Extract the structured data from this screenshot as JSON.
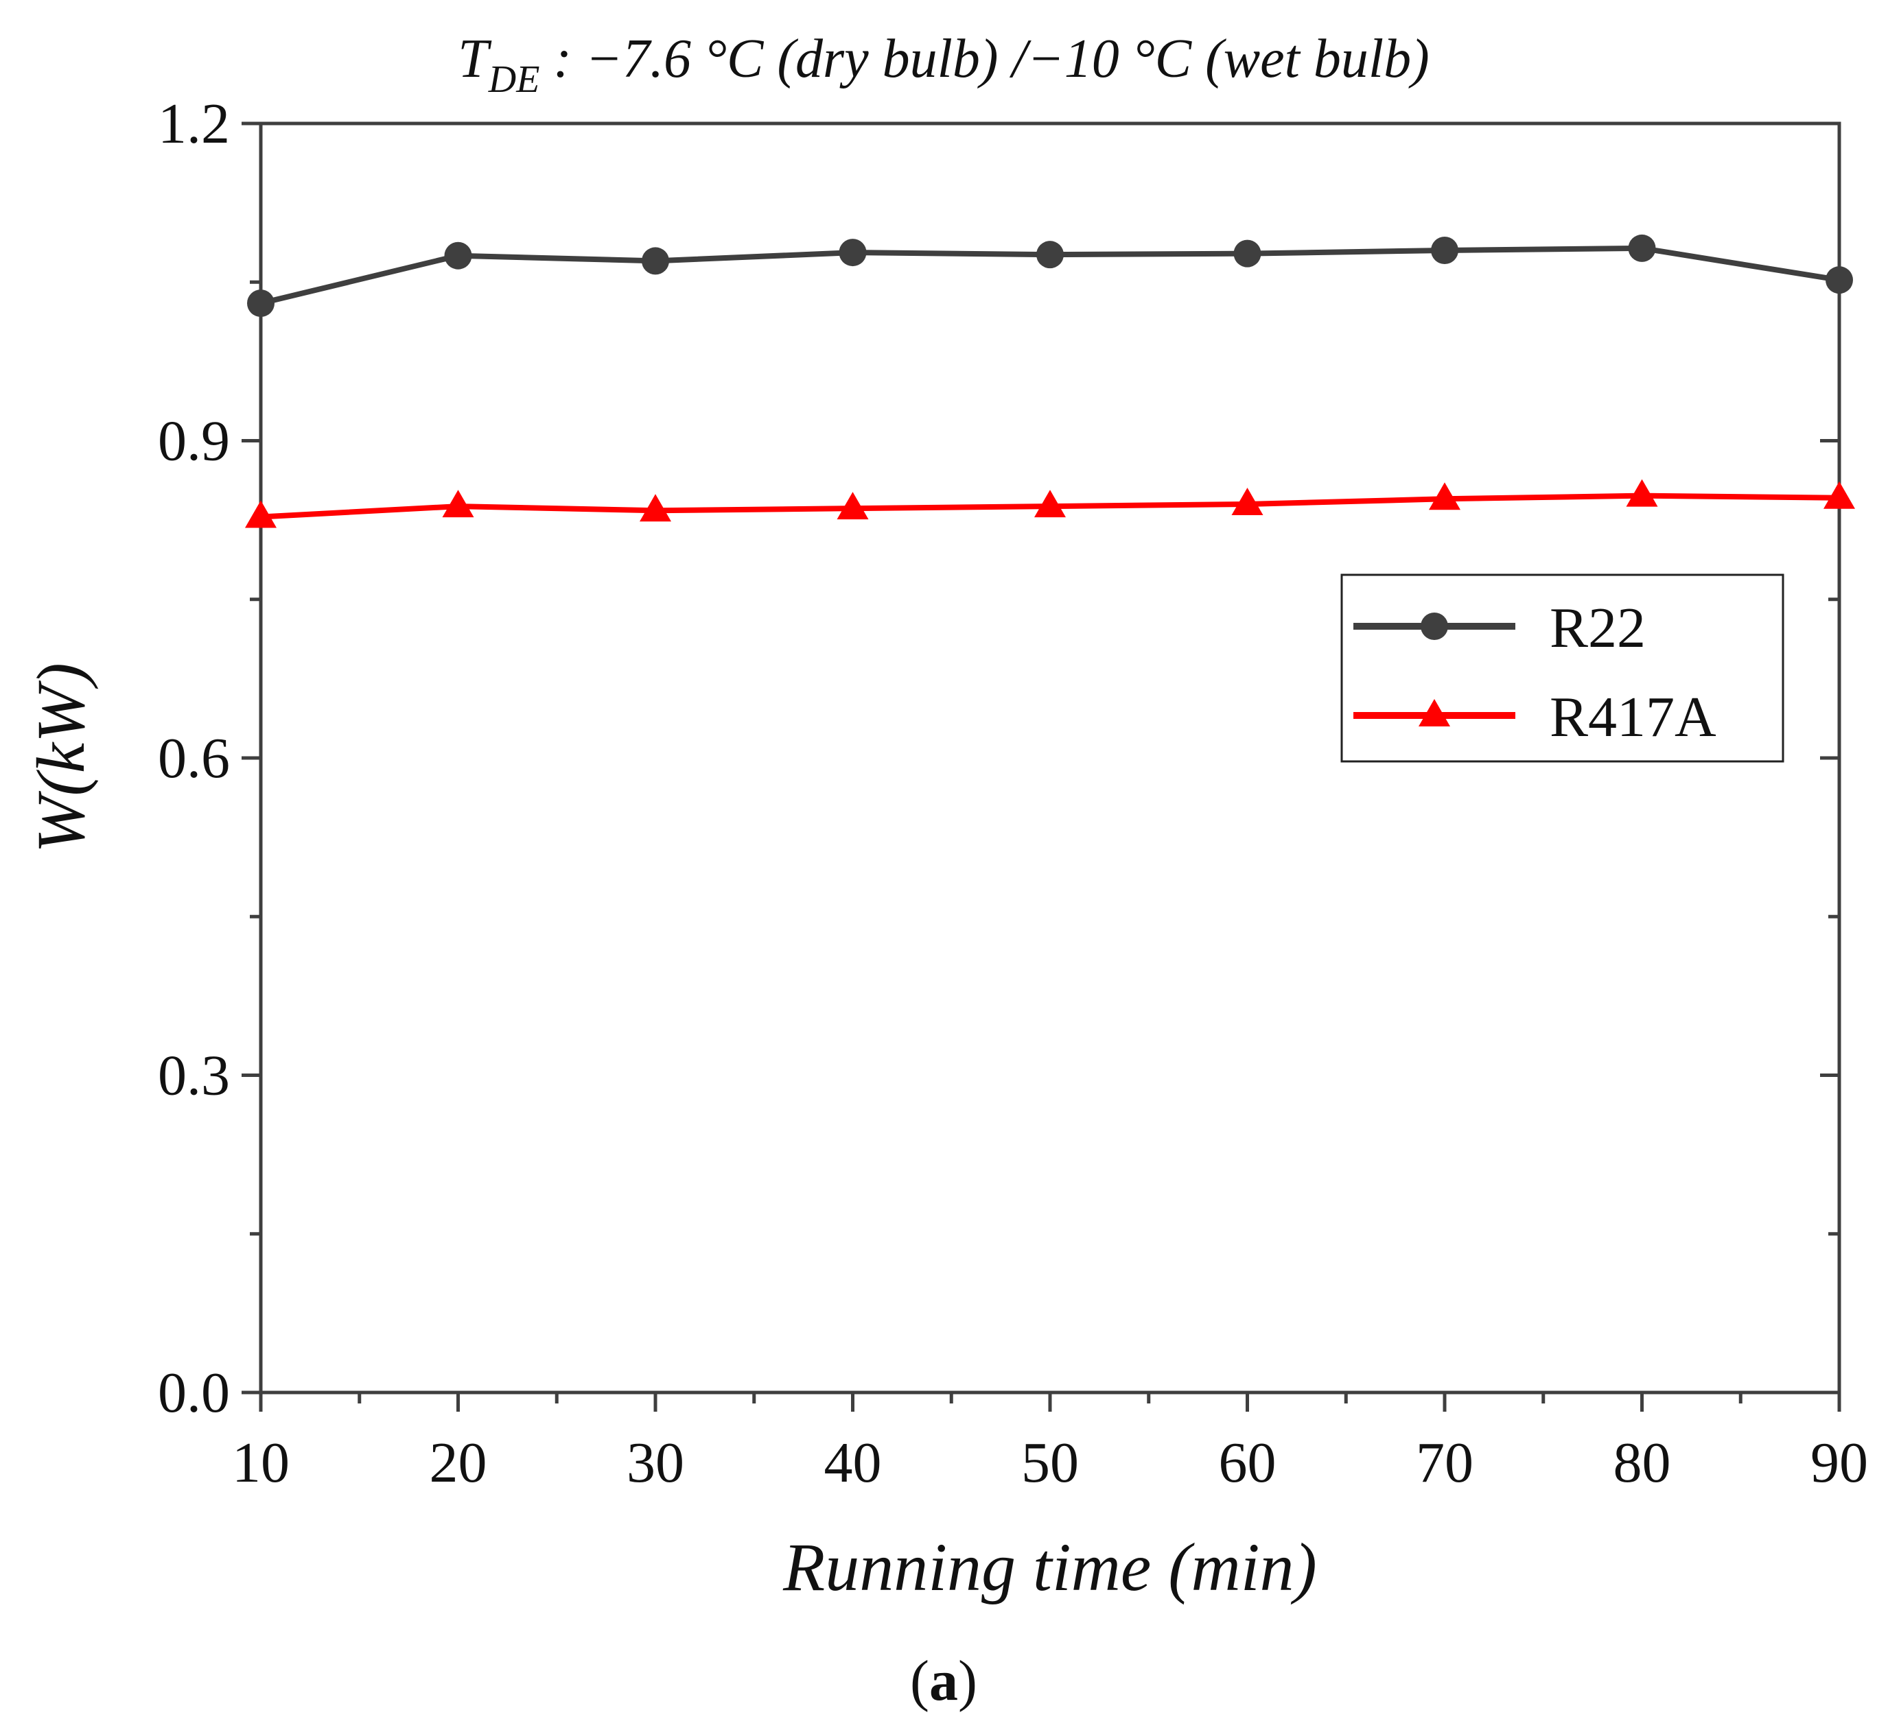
{
  "chart_data": {
    "type": "line",
    "title_main": "T",
    "title_sub": "DE",
    "title_rest": " : −7.6 °C (dry bulb) /−10 °C (wet bulb)",
    "xlabel": "Running time (min)",
    "ylabel": "W(kW)",
    "panel_label_open": "(",
    "panel_label_letter": "a",
    "panel_label_close": ")",
    "xlim": [
      10,
      90
    ],
    "ylim": [
      0.0,
      1.2
    ],
    "xticks": [
      10,
      20,
      30,
      40,
      50,
      60,
      70,
      80,
      90
    ],
    "xtick_labels": [
      "10",
      "20",
      "30",
      "40",
      "50",
      "60",
      "70",
      "80",
      "90"
    ],
    "yticks": [
      0.0,
      0.3,
      0.6,
      0.9,
      1.2
    ],
    "ytick_labels": [
      "0.0",
      "0.3",
      "0.6",
      "0.9",
      "1.2"
    ],
    "x": [
      10,
      20,
      30,
      40,
      50,
      60,
      70,
      80,
      90
    ],
    "series": [
      {
        "name": "R22",
        "color": "#3f3f3f",
        "marker": "circle",
        "values": [
          1.03,
          1.075,
          1.07,
          1.078,
          1.076,
          1.077,
          1.08,
          1.082,
          1.052
        ]
      },
      {
        "name": "R417A",
        "color": "#ff0000",
        "marker": "triangle",
        "values": [
          0.828,
          0.838,
          0.834,
          0.836,
          0.838,
          0.84,
          0.845,
          0.848,
          0.846
        ]
      }
    ],
    "legend_position": "right",
    "grid": false
  }
}
